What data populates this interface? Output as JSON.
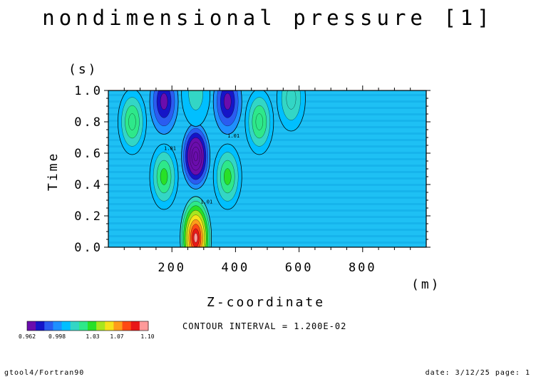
{
  "chart_data": {
    "type": "heatmap",
    "title": "nondimensional pressure [1]",
    "xlabel": "Z-coordinate",
    "xunit": "(m)",
    "ylabel": "Time",
    "yunit": "(s)",
    "xlim": [
      0,
      1000
    ],
    "ylim": [
      0.0,
      1.0
    ],
    "xticks": [
      200,
      400,
      600,
      800
    ],
    "yticks": [
      "0.0",
      "0.2",
      "0.4",
      "0.6",
      "0.8",
      "1.0"
    ],
    "contour_label": "1.01",
    "contour_interval_text": "CONTOUR INTERVAL = 1.200E-02",
    "background_value": 1.0,
    "features": [
      {
        "z": 275,
        "t": 0.06,
        "value": 1.1
      },
      {
        "z": 275,
        "t": 0.58,
        "value": 0.93
      },
      {
        "z": 175,
        "t": 0.93,
        "value": 0.962
      },
      {
        "z": 375,
        "t": 0.93,
        "value": 0.962
      },
      {
        "z": 175,
        "t": 0.45,
        "value": 1.04
      },
      {
        "z": 375,
        "t": 0.45,
        "value": 1.04
      },
      {
        "z": 75,
        "t": 0.8,
        "value": 1.03
      },
      {
        "z": 475,
        "t": 0.8,
        "value": 1.03
      },
      {
        "z": 575,
        "t": 0.95,
        "value": 1.02
      },
      {
        "z": 275,
        "t": 0.98,
        "value": 1.01
      }
    ],
    "colorbar": {
      "labels": [
        "0.962",
        "0.998",
        "1.03",
        "1.07",
        "1.10"
      ],
      "colors": [
        "#6a0dad",
        "#1515c8",
        "#2a5cf0",
        "#1e90ff",
        "#00bfff",
        "#33d6c5",
        "#2ee88a",
        "#28e028",
        "#a8e61e",
        "#f5e21a",
        "#ff9c1a",
        "#ff4a14",
        "#e81818",
        "#ff9a9a"
      ]
    }
  },
  "footer": {
    "left": "gtool4/Fortran90",
    "right": "date: 3/12/25 page: 1"
  }
}
